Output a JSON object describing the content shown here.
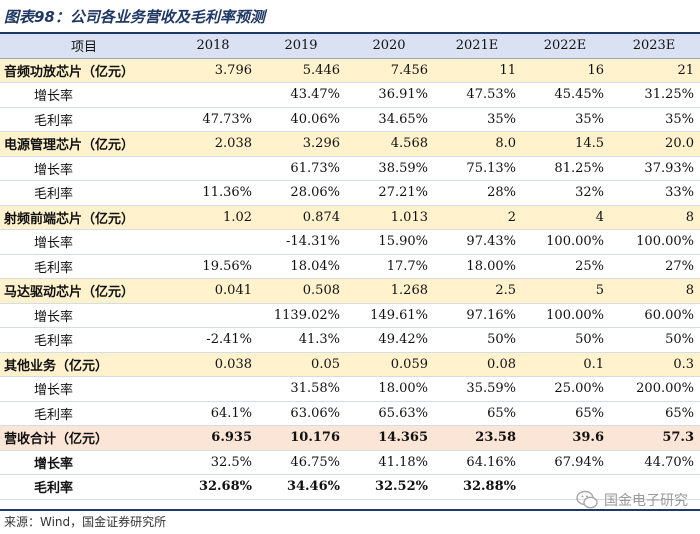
{
  "title": "图表98：公司各业务营收及毛利率预测",
  "header": [
    "项目",
    "2018",
    "2019",
    "2020",
    "2021E",
    "2022E",
    "2023E"
  ],
  "sections": [
    {
      "name": "音频功放芯片（亿元）",
      "revenue": [
        "3.796",
        "5.446",
        "7.456",
        "11",
        "16",
        "21"
      ],
      "rows": [
        {
          "label": "增长率",
          "values": [
            "",
            "43.47%",
            "36.91%",
            "47.53%",
            "45.45%",
            "31.25%"
          ]
        },
        {
          "label": "毛利率",
          "values": [
            "47.73%",
            "40.06%",
            "34.65%",
            "35%",
            "35%",
            "35%"
          ]
        }
      ]
    },
    {
      "name": "电源管理芯片（亿元）",
      "revenue": [
        "2.038",
        "3.296",
        "4.568",
        "8.0",
        "14.5",
        "20.0"
      ],
      "rows": [
        {
          "label": "增长率",
          "values": [
            "",
            "61.73%",
            "38.59%",
            "75.13%",
            "81.25%",
            "37.93%"
          ]
        },
        {
          "label": "毛利率",
          "values": [
            "11.36%",
            "28.06%",
            "27.21%",
            "28%",
            "32%",
            "33%"
          ]
        }
      ]
    },
    {
      "name": "射频前端芯片（亿元）",
      "revenue": [
        "1.02",
        "0.874",
        "1.013",
        "2",
        "4",
        "8"
      ],
      "rows": [
        {
          "label": "增长率",
          "values": [
            "",
            "-14.31%",
            "15.90%",
            "97.43%",
            "100.00%",
            "100.00%"
          ]
        },
        {
          "label": "毛利率",
          "values": [
            "19.56%",
            "18.04%",
            "17.7%",
            "18.00%",
            "25%",
            "27%"
          ]
        }
      ]
    },
    {
      "name": "马达驱动芯片（亿元）",
      "revenue": [
        "0.041",
        "0.508",
        "1.268",
        "2.5",
        "5",
        "8"
      ],
      "rows": [
        {
          "label": "增长率",
          "values": [
            "",
            "1139.02%",
            "149.61%",
            "97.16%",
            "100.00%",
            "60.00%"
          ]
        },
        {
          "label": "毛利率",
          "values": [
            "-2.41%",
            "41.3%",
            "49.42%",
            "50%",
            "50%",
            "50%"
          ]
        }
      ]
    },
    {
      "name": "其他业务（亿元）",
      "revenue": [
        "0.038",
        "0.05",
        "0.059",
        "0.08",
        "0.1",
        "0.3"
      ],
      "rows": [
        {
          "label": "增长率",
          "values": [
            "",
            "31.58%",
            "18.00%",
            "35.59%",
            "25.00%",
            "200.00%"
          ]
        },
        {
          "label": "毛利率",
          "values": [
            "64.1%",
            "63.06%",
            "65.63%",
            "65%",
            "65%",
            "65%"
          ]
        }
      ]
    }
  ],
  "total": {
    "name": "营收合计（亿元）",
    "revenue": [
      "6.935",
      "10.176",
      "14.365",
      "23.58",
      "39.6",
      "57.3"
    ],
    "growth_label": "增长率",
    "growth": [
      "32.5%",
      "46.75%",
      "41.18%",
      "64.16%",
      "67.94%",
      "44.70%"
    ],
    "margin_label": "毛利率",
    "margin": [
      "32.68%",
      "34.46%",
      "32.52%",
      "32.88%",
      "",
      ""
    ]
  },
  "source": "来源：Wind，国金证券研究所",
  "watermark": "国金电子研究"
}
